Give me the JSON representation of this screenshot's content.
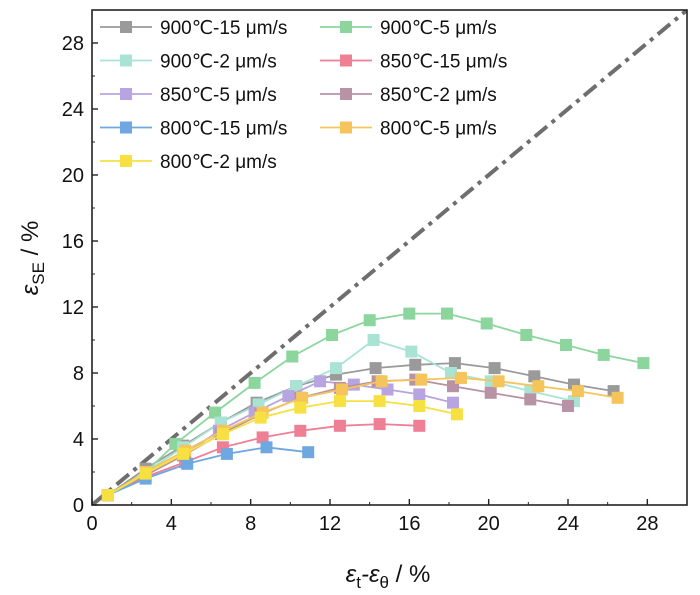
{
  "chart_data": {
    "type": "scatter",
    "xlim": [
      0,
      30
    ],
    "ylim": [
      0,
      30
    ],
    "x_ticks": [
      0,
      4,
      8,
      12,
      16,
      20,
      24,
      28
    ],
    "y_ticks": [
      0,
      4,
      8,
      12,
      16,
      20,
      24,
      28
    ],
    "x_tick_labels": [
      "0",
      "4",
      "8",
      "12",
      "16",
      "20",
      "24",
      "28"
    ],
    "y_tick_labels": [
      "0",
      "4",
      "8",
      "12",
      "16",
      "20",
      "24",
      "28"
    ],
    "xlabel": {
      "main": "ε",
      "sub1": "t",
      "mid": "-ε",
      "sub2": "θ",
      "unit": " / %"
    },
    "ylabel": {
      "main": "ε",
      "sub": "SE",
      "unit": " / %"
    },
    "legend_position": "top-left",
    "reference_line": {
      "x": [
        0,
        30
      ],
      "y": [
        0,
        30
      ],
      "color": "#6e6e6e",
      "style": "dash-dot"
    },
    "series": [
      {
        "name": "900℃-15 μm/s",
        "color": "#9a9a9a",
        "x": [
          0.8,
          2.7,
          4.6,
          6.5,
          8.3,
          10.3,
          12.3,
          14.3,
          16.3,
          18.3,
          20.3,
          22.3,
          24.3,
          26.3
        ],
        "y": [
          0.6,
          2.2,
          3.6,
          5.0,
          6.2,
          7.2,
          7.9,
          8.3,
          8.5,
          8.6,
          8.3,
          7.8,
          7.3,
          6.9
        ]
      },
      {
        "name": "900℃-5 μm/s",
        "color": "#8cd69e",
        "x": [
          0.8,
          2.7,
          4.2,
          6.2,
          8.2,
          10.1,
          12.1,
          14.0,
          16.0,
          17.9,
          19.9,
          21.9,
          23.9,
          25.8,
          27.8
        ],
        "y": [
          0.6,
          2.0,
          3.7,
          5.6,
          7.4,
          9.0,
          10.3,
          11.2,
          11.6,
          11.6,
          11.0,
          10.3,
          9.7,
          9.1,
          8.6
        ]
      },
      {
        "name": "900℃-2 μm/s",
        "color": "#a9e3d6",
        "x": [
          0.8,
          2.7,
          4.6,
          6.5,
          8.4,
          10.3,
          12.3,
          14.2,
          16.1,
          18.1,
          20.1,
          22.1,
          24.3
        ],
        "y": [
          0.6,
          2.0,
          3.5,
          5.0,
          6.1,
          7.2,
          8.3,
          10.0,
          9.3,
          8.0,
          7.5,
          6.9,
          6.3
        ]
      },
      {
        "name": "850℃-15 μm/s",
        "color": "#ef7f95",
        "x": [
          0.8,
          2.7,
          4.7,
          6.6,
          8.6,
          10.5,
          12.5,
          14.5,
          16.5
        ],
        "y": [
          0.6,
          1.7,
          2.6,
          3.5,
          4.1,
          4.5,
          4.8,
          4.9,
          4.8
        ]
      },
      {
        "name": "850℃-5 μm/s",
        "color": "#b7a4e0",
        "x": [
          0.8,
          2.7,
          4.6,
          6.4,
          8.2,
          9.9,
          11.5,
          13.2,
          14.9,
          16.5,
          18.2
        ],
        "y": [
          0.6,
          1.9,
          3.0,
          4.5,
          5.6,
          6.6,
          7.5,
          7.3,
          7.0,
          6.7,
          6.2
        ]
      },
      {
        "name": "850℃-2 μm/s",
        "color": "#b893a5",
        "x": [
          0.8,
          2.7,
          4.6,
          6.5,
          8.5,
          10.5,
          12.5,
          14.4,
          16.3,
          18.2,
          20.1,
          22.1,
          24.0
        ],
        "y": [
          0.6,
          1.8,
          3.0,
          4.3,
          5.5,
          6.5,
          7.1,
          7.5,
          7.6,
          7.2,
          6.8,
          6.4,
          6.0
        ]
      },
      {
        "name": "800℃-15 μm/s",
        "color": "#6fa7e0",
        "x": [
          0.8,
          2.7,
          4.8,
          6.8,
          8.8,
          10.9
        ],
        "y": [
          0.6,
          1.6,
          2.5,
          3.1,
          3.5,
          3.2
        ]
      },
      {
        "name": "800℃-5 μm/s",
        "color": "#f5c55c",
        "x": [
          0.8,
          2.7,
          4.7,
          6.6,
          8.6,
          10.6,
          12.6,
          14.6,
          16.6,
          18.6,
          20.5,
          22.5,
          24.5,
          26.5
        ],
        "y": [
          0.6,
          2.0,
          3.3,
          4.5,
          5.6,
          6.5,
          7.0,
          7.5,
          7.6,
          7.7,
          7.5,
          7.2,
          6.9,
          6.5
        ]
      },
      {
        "name": "800℃-2 μm/s",
        "color": "#f7e042",
        "x": [
          0.8,
          2.7,
          4.6,
          6.6,
          8.5,
          10.5,
          12.5,
          14.5,
          16.5,
          18.4
        ],
        "y": [
          0.6,
          1.9,
          3.1,
          4.3,
          5.3,
          5.9,
          6.3,
          6.3,
          6.0,
          5.5
        ]
      }
    ]
  }
}
